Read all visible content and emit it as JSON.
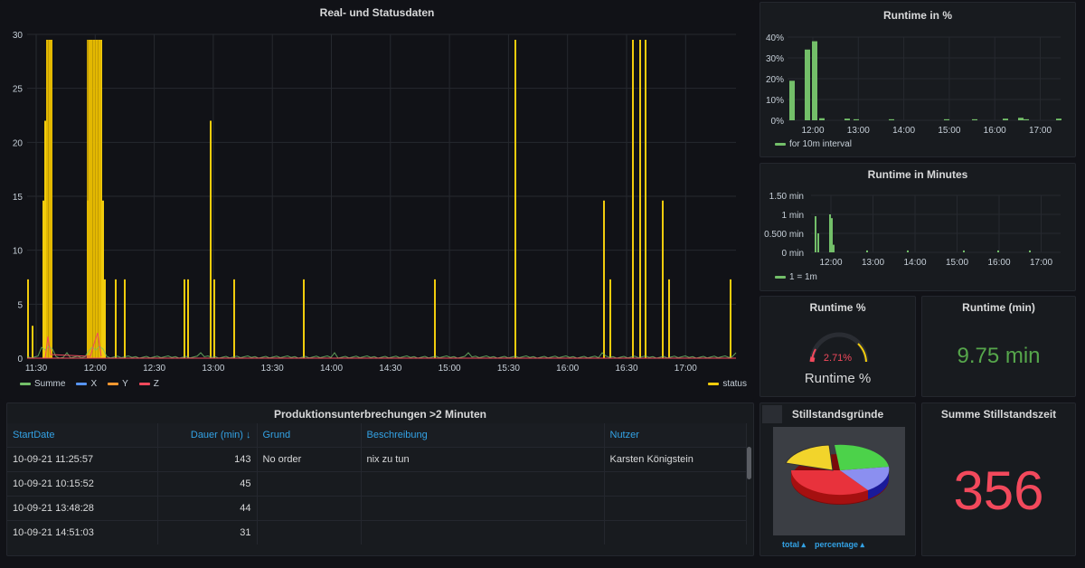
{
  "main_chart": {
    "title": "Real- und Statusdaten",
    "y_ticks": [
      "30",
      "25",
      "20",
      "15",
      "10",
      "5",
      "0"
    ],
    "x_ticks": [
      "11:30",
      "12:00",
      "12:30",
      "13:00",
      "13:30",
      "14:00",
      "14:30",
      "15:00",
      "15:30",
      "16:00",
      "16:30",
      "17:00"
    ],
    "legend": [
      {
        "label": "Summe",
        "color": "#73bf69"
      },
      {
        "label": "X",
        "color": "#5794f2"
      },
      {
        "label": "Y",
        "color": "#ff9830"
      },
      {
        "label": "Z",
        "color": "#f2495c"
      }
    ],
    "legend_right": {
      "label": "status",
      "color": "#f2cc0c"
    }
  },
  "runtime_pct_chart": {
    "title": "Runtime in %",
    "y_ticks": [
      "40%",
      "30%",
      "20%",
      "10%",
      "0%"
    ],
    "x_ticks": [
      "12:00",
      "13:00",
      "14:00",
      "15:00",
      "16:00",
      "17:00"
    ],
    "legend": "for 10m interval",
    "color": "#73bf69"
  },
  "runtime_min_chart": {
    "title": "Runtime in Minutes",
    "y_ticks": [
      "1.50 min",
      "1 min",
      "0.500 min",
      "0 min"
    ],
    "x_ticks": [
      "12:00",
      "13:00",
      "14:00",
      "15:00",
      "16:00",
      "17:00"
    ],
    "legend": "1 = 1m",
    "color": "#73bf69"
  },
  "runtime_gauge": {
    "title": "Runtime %",
    "value": "2.71%",
    "label": "Runtime %",
    "fraction": 0.0271
  },
  "runtime_min_stat": {
    "title": "Runtime (min)",
    "value": "9.75 min",
    "color": "#56a64b"
  },
  "table": {
    "title": "Produktionsunterbrechungen >2 Minuten",
    "headers": [
      "StartDate",
      "Dauer (min) ↓",
      "Grund",
      "Beschreibung",
      "Nutzer"
    ],
    "rows": [
      [
        "10-09-21 11:25:57",
        "143",
        "No order",
        "nix zu tun",
        "Karsten Königstein"
      ],
      [
        "10-09-21 10:15:52",
        "45",
        "",
        "",
        ""
      ],
      [
        "10-09-21 13:48:28",
        "44",
        "",
        "",
        ""
      ],
      [
        "10-09-21 14:51:03",
        "31",
        "",
        "",
        ""
      ]
    ]
  },
  "pie_panel": {
    "title": "Stillstandsgründe",
    "link_total": "total ▴",
    "link_percentage": "percentage ▴"
  },
  "downtime_stat": {
    "title": "Summe Stillstandszeit",
    "value": "356",
    "color": "#f2495c"
  }
}
